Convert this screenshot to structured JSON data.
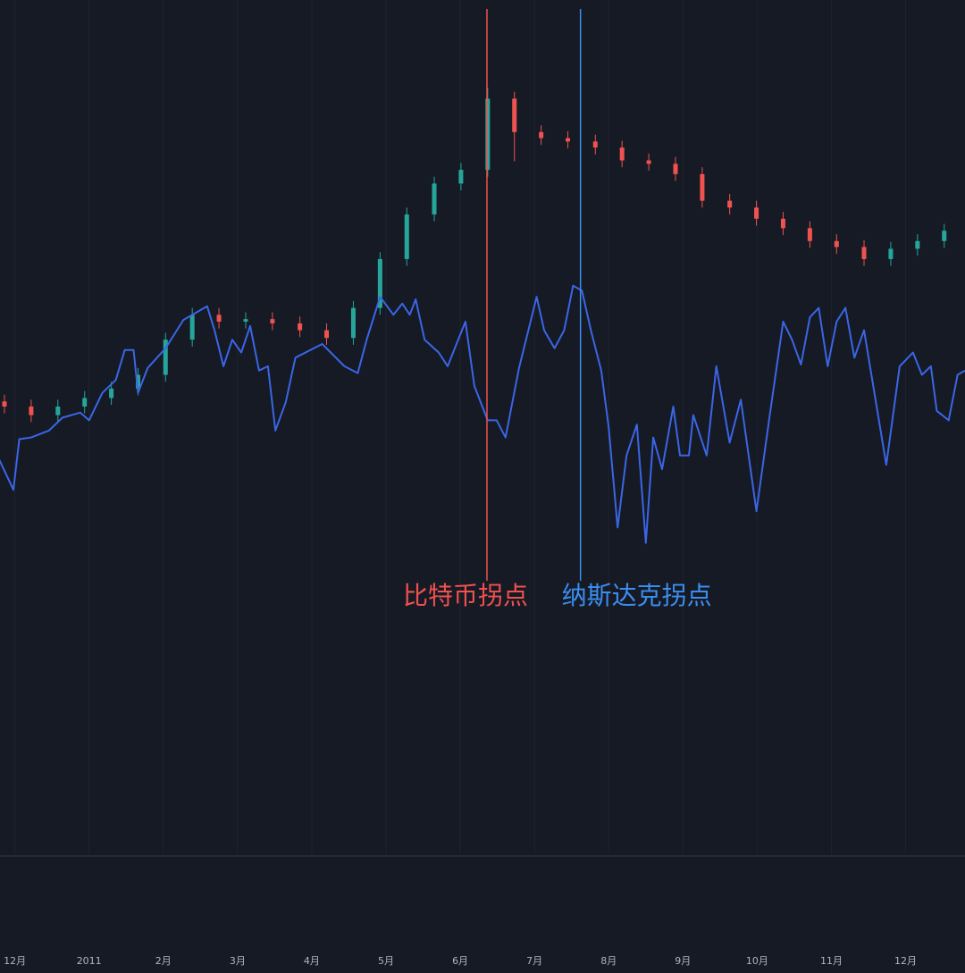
{
  "chart_data": {
    "type": "candlestick",
    "x": [
      -0.14,
      0.22,
      0.58,
      0.94,
      1.3,
      1.66,
      2.03,
      2.39,
      2.75,
      3.11,
      3.47,
      3.84,
      4.2,
      4.56,
      4.92,
      5.28,
      5.65,
      6.01,
      6.37,
      6.73,
      7.09,
      7.45,
      7.82,
      8.18,
      8.54,
      8.9,
      9.26,
      9.63,
      9.99,
      10.35,
      10.71,
      11.07,
      11.44,
      11.8,
      12.16,
      12.52
    ],
    "open": [
      53.2,
      52.6,
      51.6,
      52.6,
      53.6,
      54.7,
      56.3,
      60.4,
      63.3,
      62.5,
      62.8,
      62.3,
      61.5,
      60.6,
      64.1,
      69.8,
      75.0,
      78.6,
      80.2,
      88.5,
      84.6,
      83.9,
      83.5,
      82.8,
      81.3,
      80.9,
      79.7,
      76.6,
      75.8,
      74.5,
      73.4,
      71.9,
      71.2,
      69.8,
      71.0,
      71.9
    ],
    "high": [
      54.0,
      53.4,
      53.4,
      54.4,
      55.5,
      57.1,
      61.2,
      64.1,
      64.1,
      63.6,
      63.6,
      63.1,
      62.3,
      64.9,
      70.6,
      75.8,
      79.4,
      81.0,
      89.8,
      89.3,
      85.4,
      84.7,
      84.3,
      83.6,
      82.1,
      81.7,
      80.5,
      77.4,
      76.6,
      75.3,
      74.2,
      72.7,
      72.0,
      71.8,
      72.7,
      73.9
    ],
    "low": [
      51.8,
      50.8,
      50.8,
      51.8,
      52.8,
      53.9,
      55.5,
      59.6,
      61.7,
      61.7,
      61.5,
      60.7,
      59.8,
      59.8,
      63.3,
      69.0,
      74.2,
      77.8,
      79.4,
      81.2,
      83.1,
      82.7,
      82.0,
      80.5,
      80.1,
      78.9,
      75.8,
      75.0,
      73.7,
      72.6,
      71.1,
      70.4,
      69.0,
      69.0,
      70.2,
      71.1
    ],
    "close": [
      52.6,
      51.6,
      52.6,
      53.6,
      54.7,
      56.3,
      60.4,
      63.3,
      62.5,
      62.8,
      62.3,
      61.5,
      60.6,
      64.1,
      69.8,
      75.0,
      78.6,
      80.2,
      88.5,
      84.6,
      83.9,
      83.5,
      82.8,
      81.3,
      80.9,
      79.7,
      76.6,
      75.8,
      74.5,
      73.4,
      71.9,
      71.2,
      69.8,
      71.0,
      71.9,
      73.1
    ],
    "up_color": "#26a69a",
    "down_color": "#ef5350",
    "line": {
      "type": "line",
      "color": "#3a66e6",
      "x": [
        -0.21,
        -0.02,
        0.06,
        0.22,
        0.46,
        0.64,
        0.88,
        1.0,
        1.18,
        1.36,
        1.48,
        1.6,
        1.66,
        1.79,
        2.03,
        2.27,
        2.59,
        2.69,
        2.81,
        2.93,
        3.05,
        3.17,
        3.29,
        3.41,
        3.51,
        3.65,
        3.78,
        4.14,
        4.44,
        4.62,
        4.74,
        4.92,
        5.1,
        5.22,
        5.32,
        5.4,
        5.52,
        5.71,
        5.83,
        5.95,
        6.07,
        6.19,
        6.37,
        6.49,
        6.61,
        6.79,
        7.03,
        7.13,
        7.27,
        7.4,
        7.52,
        7.64,
        7.76,
        7.9,
        8.0,
        8.12,
        8.24,
        8.38,
        8.5,
        8.6,
        8.72,
        8.87,
        8.96,
        9.08,
        9.14,
        9.32,
        9.45,
        9.63,
        9.78,
        9.99,
        10.17,
        10.35,
        10.47,
        10.59,
        10.71,
        10.83,
        10.95,
        11.07,
        11.19,
        11.31,
        11.44,
        11.56,
        11.74,
        11.92,
        12.1,
        12.22,
        12.34,
        12.42,
        12.58,
        12.7,
        12.8
      ],
      "values": [
        46.4,
        42.9,
        48.8,
        49.0,
        49.8,
        51.3,
        51.9,
        51.0,
        54.2,
        55.7,
        59.2,
        59.2,
        54.2,
        57.1,
        59.4,
        62.7,
        64.3,
        61.5,
        57.3,
        60.4,
        58.9,
        62.0,
        56.8,
        57.3,
        49.8,
        53.1,
        58.3,
        59.9,
        57.3,
        56.5,
        60.4,
        65.4,
        63.3,
        64.6,
        63.3,
        65.1,
        60.4,
        58.9,
        57.3,
        59.9,
        62.5,
        55.0,
        51.0,
        51.0,
        49.0,
        57.0,
        65.4,
        61.5,
        59.4,
        61.5,
        66.7,
        66.1,
        61.5,
        56.8,
        50.2,
        38.5,
        46.9,
        50.5,
        36.7,
        49.0,
        45.3,
        52.6,
        46.9,
        46.9,
        51.6,
        46.9,
        57.3,
        48.4,
        53.4,
        40.4,
        51.6,
        62.5,
        60.4,
        57.5,
        63.0,
        64.1,
        57.3,
        62.5,
        64.1,
        58.3,
        61.5,
        55.2,
        45.8,
        57.3,
        58.9,
        56.3,
        57.3,
        52.1,
        51.0,
        56.3,
        56.8
      ]
    },
    "markers": [
      {
        "x": 6.36,
        "color": "#f0514f",
        "label": "比特币拐点"
      },
      {
        "x": 7.62,
        "color": "#3b8ef0",
        "label": "纳斯达克拐点"
      }
    ],
    "xlim": [
      -0.2,
      12.8
    ],
    "ylim": [
      0,
      100
    ],
    "xticks": [
      {
        "value": 0,
        "label": "12月"
      },
      {
        "value": 1,
        "label": "2011"
      },
      {
        "value": 2,
        "label": "2月"
      },
      {
        "value": 3,
        "label": "3月"
      },
      {
        "value": 4,
        "label": "4月"
      },
      {
        "value": 5,
        "label": "5月"
      },
      {
        "value": 6,
        "label": "6月"
      },
      {
        "value": 7,
        "label": "7月"
      },
      {
        "value": 8,
        "label": "8月"
      },
      {
        "value": 9,
        "label": "9月"
      },
      {
        "value": 10,
        "label": "10月"
      },
      {
        "value": 11,
        "label": "11月"
      },
      {
        "value": 12,
        "label": "12月"
      }
    ],
    "grid": true
  }
}
